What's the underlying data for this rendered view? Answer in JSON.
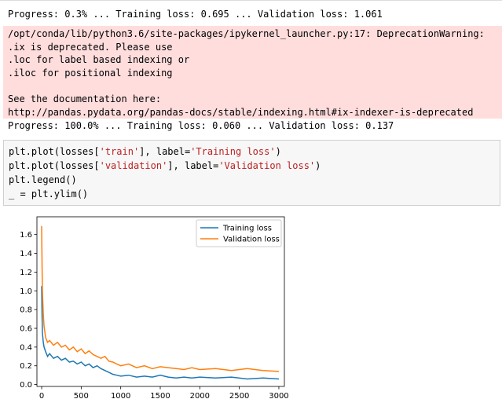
{
  "output_top": "Progress: 0.3% ... Training loss: 0.695 ... Validation loss: 1.061",
  "warning": {
    "lines": [
      "/opt/conda/lib/python3.6/site-packages/ipykernel_launcher.py:17: DeprecationWarning:",
      ".ix is deprecated. Please use",
      ".loc for label based indexing or",
      ".iloc for positional indexing"
    ],
    "see_lines": [
      "See the documentation here:",
      "http://pandas.pydata.org/pandas-docs/stable/indexing.html#ix-indexer-is-deprecated"
    ]
  },
  "output_bottom": "Progress: 100.0% ... Training loss: 0.060 ... Validation loss: 0.137",
  "code_lines": [
    "plt.plot(losses['train'], label='Training loss')",
    "plt.plot(losses['validation'], label='Validation loss')",
    "plt.legend()",
    "_ = plt.ylim()"
  ],
  "chart_data": {
    "type": "line",
    "x": [
      0,
      5,
      10,
      20,
      30,
      50,
      75,
      100,
      150,
      200,
      250,
      300,
      350,
      400,
      450,
      500,
      550,
      600,
      650,
      700,
      750,
      800,
      850,
      900,
      950,
      1000,
      1100,
      1200,
      1300,
      1400,
      1500,
      1600,
      1700,
      1800,
      1900,
      2000,
      2200,
      2400,
      2600,
      2800,
      3000
    ],
    "series": [
      {
        "name": "Training loss",
        "color": "#1f77b4",
        "values": [
          1.05,
          0.75,
          0.55,
          0.45,
          0.4,
          0.35,
          0.3,
          0.33,
          0.28,
          0.3,
          0.26,
          0.28,
          0.24,
          0.25,
          0.22,
          0.24,
          0.2,
          0.22,
          0.18,
          0.2,
          0.17,
          0.15,
          0.13,
          0.11,
          0.1,
          0.09,
          0.1,
          0.08,
          0.09,
          0.08,
          0.1,
          0.08,
          0.07,
          0.08,
          0.07,
          0.08,
          0.07,
          0.08,
          0.06,
          0.07,
          0.06
        ]
      },
      {
        "name": "Validation loss",
        "color": "#ff7f0e",
        "values": [
          1.69,
          1.3,
          1.0,
          0.75,
          0.62,
          0.5,
          0.45,
          0.47,
          0.42,
          0.45,
          0.4,
          0.42,
          0.37,
          0.4,
          0.35,
          0.38,
          0.33,
          0.36,
          0.32,
          0.3,
          0.28,
          0.3,
          0.25,
          0.24,
          0.22,
          0.2,
          0.22,
          0.18,
          0.2,
          0.17,
          0.19,
          0.18,
          0.17,
          0.16,
          0.18,
          0.16,
          0.17,
          0.15,
          0.17,
          0.15,
          0.14
        ]
      }
    ],
    "xlim": [
      -60,
      3070
    ],
    "xticks": [
      0,
      500,
      1000,
      1500,
      2000,
      2500,
      3000
    ],
    "ylim": [
      -0.02,
      1.79
    ],
    "yticks": [
      {
        "value": 0,
        "label": "0.0"
      },
      0.2,
      0.4,
      0.6,
      0.8,
      {
        "value": 1,
        "label": "1.0"
      },
      1.2,
      1.4,
      1.6
    ],
    "legend": "upper right"
  }
}
